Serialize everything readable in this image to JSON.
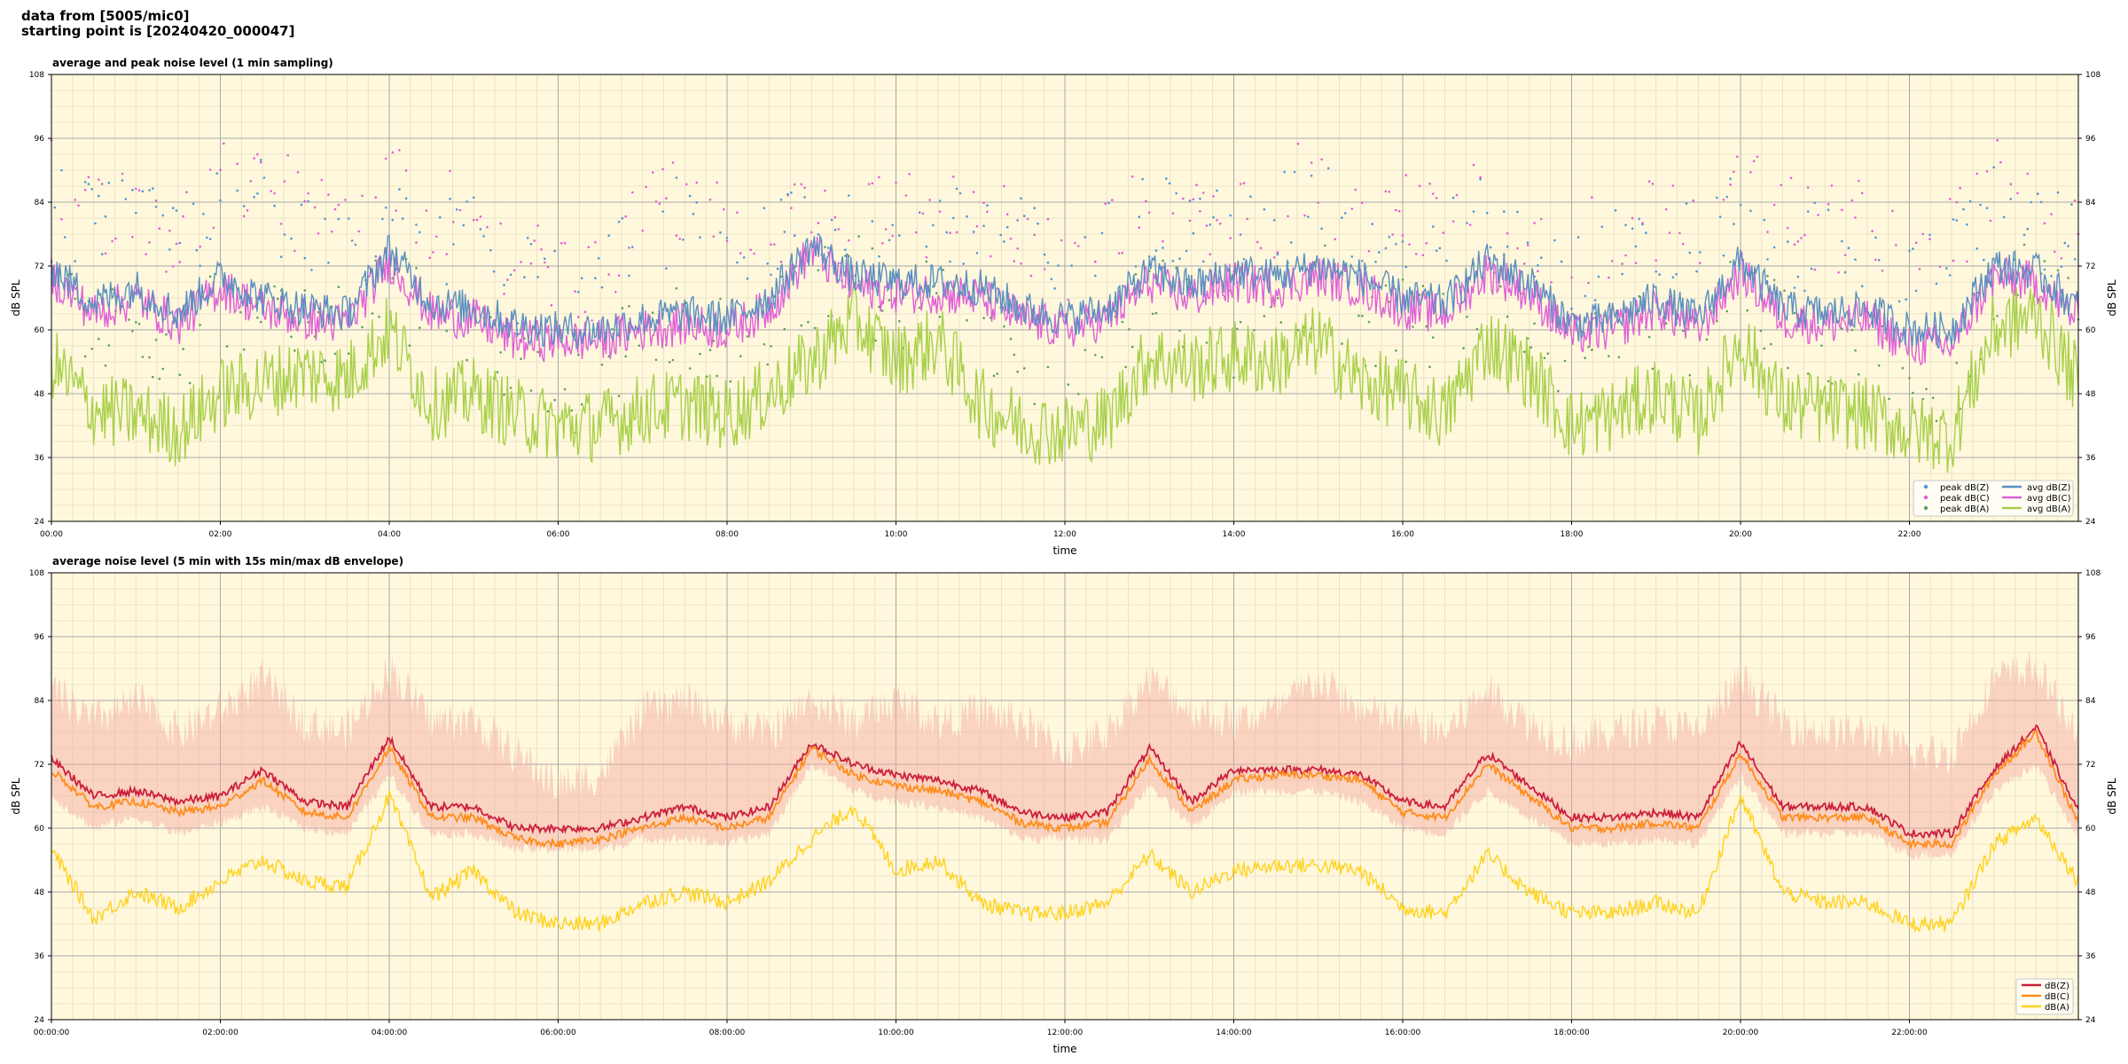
{
  "header": {
    "line1": "data from [5005/mic0]",
    "line2": "starting point is [20240420_000047]"
  },
  "colors": {
    "plot_bg": "#fff8dc",
    "grid_major": "#a9a9a9",
    "grid_minor": "#e6dcc0",
    "zpeak": "#4d96d6",
    "cpeak": "#e85bd6",
    "apeak": "#5aa05a",
    "zavg": "#5b8fc0",
    "cavg": "#e060d8",
    "aavg": "#a8d04a",
    "z5": "#cc1e3c",
    "c5": "#ff8c1a",
    "a5": "#ffd21e",
    "envelope": "#f4a6a0"
  },
  "chart_data": [
    {
      "type": "line",
      "id": "top",
      "title": "average and peak noise level (1 min sampling)",
      "xlabel": "time",
      "ylabel": "dB SPL",
      "ylim": [
        24,
        108
      ],
      "xlim_hours": [
        0,
        24
      ],
      "y_ticks": [
        "24",
        "36",
        "48",
        "60",
        "72",
        "84",
        "96",
        "108"
      ],
      "x_ticks": [
        "00:00",
        "02:00",
        "04:00",
        "06:00",
        "08:00",
        "10:00",
        "12:00",
        "14:00",
        "16:00",
        "18:00",
        "20:00",
        "22:00"
      ],
      "grid": true,
      "legend_position": "lower-right",
      "legend": [
        "peak dB(Z)",
        "peak dB(C)",
        "peak dB(A)",
        "avg dB(Z)",
        "avg dB(C)",
        "avg dB(A)"
      ],
      "x_hours": [
        0,
        0.5,
        1,
        1.5,
        2,
        2.5,
        3,
        3.5,
        4,
        4.5,
        5,
        5.5,
        6,
        6.5,
        7,
        7.5,
        8,
        8.5,
        9,
        9.5,
        10,
        10.5,
        11,
        11.5,
        12,
        12.5,
        13,
        13.5,
        14,
        14.5,
        15,
        15.5,
        16,
        16.5,
        17,
        17.5,
        18,
        18.5,
        19,
        19.5,
        20,
        20.5,
        21,
        21.5,
        22,
        22.5,
        23,
        23.5,
        24
      ],
      "series": [
        {
          "name": "avg dB(Z)",
          "key": "zavg",
          "values": [
            72,
            65,
            68,
            63,
            70,
            66,
            64,
            63,
            75,
            65,
            64,
            61,
            60,
            60,
            62,
            63,
            62,
            66,
            76,
            70,
            69,
            69,
            68,
            64,
            62,
            64,
            71,
            68,
            71,
            70,
            72,
            70,
            66,
            65,
            73,
            69,
            61,
            62,
            66,
            62,
            73,
            64,
            63,
            64,
            60,
            60,
            72,
            71,
            64
          ]
        },
        {
          "name": "avg dB(C)",
          "key": "cavg",
          "values": [
            70,
            63,
            66,
            61,
            68,
            64,
            62,
            61,
            73,
            63,
            62,
            58,
            58,
            58,
            60,
            61,
            60,
            64,
            75,
            68,
            67,
            67,
            66,
            62,
            60,
            62,
            69,
            66,
            69,
            68,
            70,
            68,
            64,
            63,
            71,
            67,
            59,
            60,
            64,
            60,
            71,
            62,
            61,
            62,
            57,
            57,
            70,
            69,
            62
          ]
        },
        {
          "name": "avg dB(A)",
          "key": "aavg",
          "values": [
            54,
            45,
            44,
            41,
            48,
            50,
            52,
            51,
            60,
            46,
            48,
            44,
            42,
            42,
            45,
            46,
            44,
            48,
            54,
            62,
            54,
            58,
            46,
            42,
            41,
            43,
            55,
            53,
            55,
            54,
            58,
            50,
            48,
            44,
            58,
            52,
            42,
            44,
            48,
            43,
            58,
            46,
            45,
            44,
            41,
            40,
            60,
            63,
            50
          ]
        },
        {
          "name": "peak dB(Z)",
          "key": "zpeak",
          "values": [
            84,
            78,
            80,
            75,
            82,
            86,
            76,
            74,
            85,
            78,
            76,
            70,
            66,
            67,
            78,
            80,
            76,
            74,
            82,
            76,
            80,
            78,
            78,
            76,
            72,
            76,
            82,
            80,
            76,
            80,
            86,
            78,
            78,
            76,
            80,
            76,
            72,
            74,
            78,
            76,
            82,
            78,
            74,
            76,
            72,
            72,
            84,
            80,
            74
          ]
        },
        {
          "name": "peak dB(C)",
          "key": "cpeak",
          "values": [
            88,
            82,
            84,
            78,
            86,
            90,
            80,
            78,
            88,
            82,
            80,
            74,
            68,
            69,
            82,
            84,
            80,
            76,
            84,
            78,
            82,
            80,
            82,
            80,
            74,
            78,
            86,
            84,
            78,
            82,
            90,
            80,
            82,
            80,
            84,
            80,
            76,
            78,
            82,
            80,
            86,
            82,
            78,
            80,
            76,
            76,
            88,
            84,
            78
          ]
        },
        {
          "name": "peak dB(A)",
          "key": "apeak",
          "values": [
            70,
            60,
            58,
            52,
            64,
            66,
            62,
            60,
            72,
            58,
            60,
            54,
            48,
            50,
            60,
            62,
            58,
            60,
            66,
            70,
            64,
            66,
            58,
            56,
            52,
            56,
            66,
            64,
            60,
            64,
            70,
            62,
            62,
            58,
            68,
            64,
            54,
            56,
            60,
            56,
            68,
            60,
            58,
            56,
            50,
            48,
            70,
            72,
            60
          ]
        }
      ]
    },
    {
      "type": "line",
      "id": "bottom",
      "title": "average noise level (5 min with 15s min/max dB envelope)",
      "xlabel": "time",
      "ylabel": "dB SPL",
      "ylim": [
        24,
        108
      ],
      "xlim_hours": [
        0,
        24
      ],
      "y_ticks": [
        "24",
        "36",
        "48",
        "60",
        "72",
        "84",
        "96",
        "108"
      ],
      "x_ticks": [
        "00:00:00",
        "02:00:00",
        "04:00:00",
        "06:00:00",
        "08:00:00",
        "10:00:00",
        "12:00:00",
        "14:00:00",
        "16:00:00",
        "18:00:00",
        "20:00:00",
        "22:00:00"
      ],
      "grid": true,
      "legend_position": "lower-right",
      "legend": [
        "dB(Z)",
        "dB(C)",
        "dB(A)"
      ],
      "x_hours": [
        0,
        0.5,
        1,
        1.5,
        2,
        2.5,
        3,
        3.5,
        4,
        4.5,
        5,
        5.5,
        6,
        6.5,
        7,
        7.5,
        8,
        8.5,
        9,
        9.5,
        10,
        10.5,
        11,
        11.5,
        12,
        12.5,
        13,
        13.5,
        14,
        14.5,
        15,
        15.5,
        16,
        16.5,
        17,
        17.5,
        18,
        18.5,
        19,
        19.5,
        20,
        20.5,
        21,
        21.5,
        22,
        22.5,
        23,
        23.5,
        24
      ],
      "series": [
        {
          "name": "dB(Z)",
          "key": "z5",
          "values": [
            73,
            66,
            67,
            65,
            66,
            71,
            65,
            64,
            77,
            64,
            64,
            60,
            60,
            60,
            62,
            64,
            62,
            64,
            76,
            72,
            70,
            69,
            67,
            63,
            62,
            63,
            75,
            65,
            71,
            71,
            71,
            70,
            65,
            64,
            74,
            68,
            62,
            62,
            63,
            62,
            76,
            64,
            64,
            64,
            59,
            59,
            71,
            79,
            63
          ]
        },
        {
          "name": "dB(C)",
          "key": "c5",
          "values": [
            71,
            64,
            65,
            63,
            64,
            69,
            63,
            62,
            75,
            62,
            62,
            58,
            57,
            58,
            60,
            62,
            60,
            62,
            75,
            70,
            68,
            67,
            65,
            61,
            60,
            61,
            73,
            63,
            69,
            70,
            70,
            69,
            63,
            62,
            72,
            66,
            60,
            60,
            61,
            60,
            74,
            62,
            62,
            62,
            57,
            57,
            70,
            78,
            61
          ]
        },
        {
          "name": "dB(A)",
          "key": "a5",
          "values": [
            56,
            43,
            48,
            45,
            50,
            54,
            50,
            49,
            66,
            47,
            52,
            44,
            42,
            42,
            46,
            48,
            46,
            50,
            58,
            64,
            52,
            54,
            46,
            44,
            44,
            46,
            55,
            48,
            52,
            53,
            53,
            52,
            45,
            44,
            55,
            48,
            44,
            44,
            46,
            44,
            66,
            48,
            46,
            46,
            42,
            42,
            57,
            62,
            50
          ]
        },
        {
          "name": "max envelope",
          "key": "envelope",
          "values": [
            86,
            80,
            84,
            78,
            82,
            88,
            80,
            78,
            90,
            80,
            80,
            74,
            68,
            70,
            82,
            84,
            80,
            78,
            84,
            80,
            84,
            80,
            82,
            80,
            74,
            78,
            88,
            82,
            80,
            82,
            88,
            82,
            80,
            78,
            86,
            80,
            76,
            78,
            80,
            78,
            88,
            80,
            78,
            78,
            74,
            74,
            88,
            90,
            78
          ]
        },
        {
          "name": "min envelope",
          "key": "envelope",
          "values": [
            66,
            60,
            62,
            59,
            61,
            64,
            60,
            59,
            70,
            59,
            59,
            56,
            56,
            56,
            58,
            58,
            57,
            59,
            72,
            67,
            65,
            64,
            62,
            58,
            58,
            58,
            68,
            60,
            67,
            67,
            67,
            65,
            60,
            59,
            67,
            62,
            57,
            57,
            58,
            57,
            70,
            59,
            59,
            59,
            55,
            55,
            67,
            72,
            58
          ]
        }
      ]
    }
  ]
}
